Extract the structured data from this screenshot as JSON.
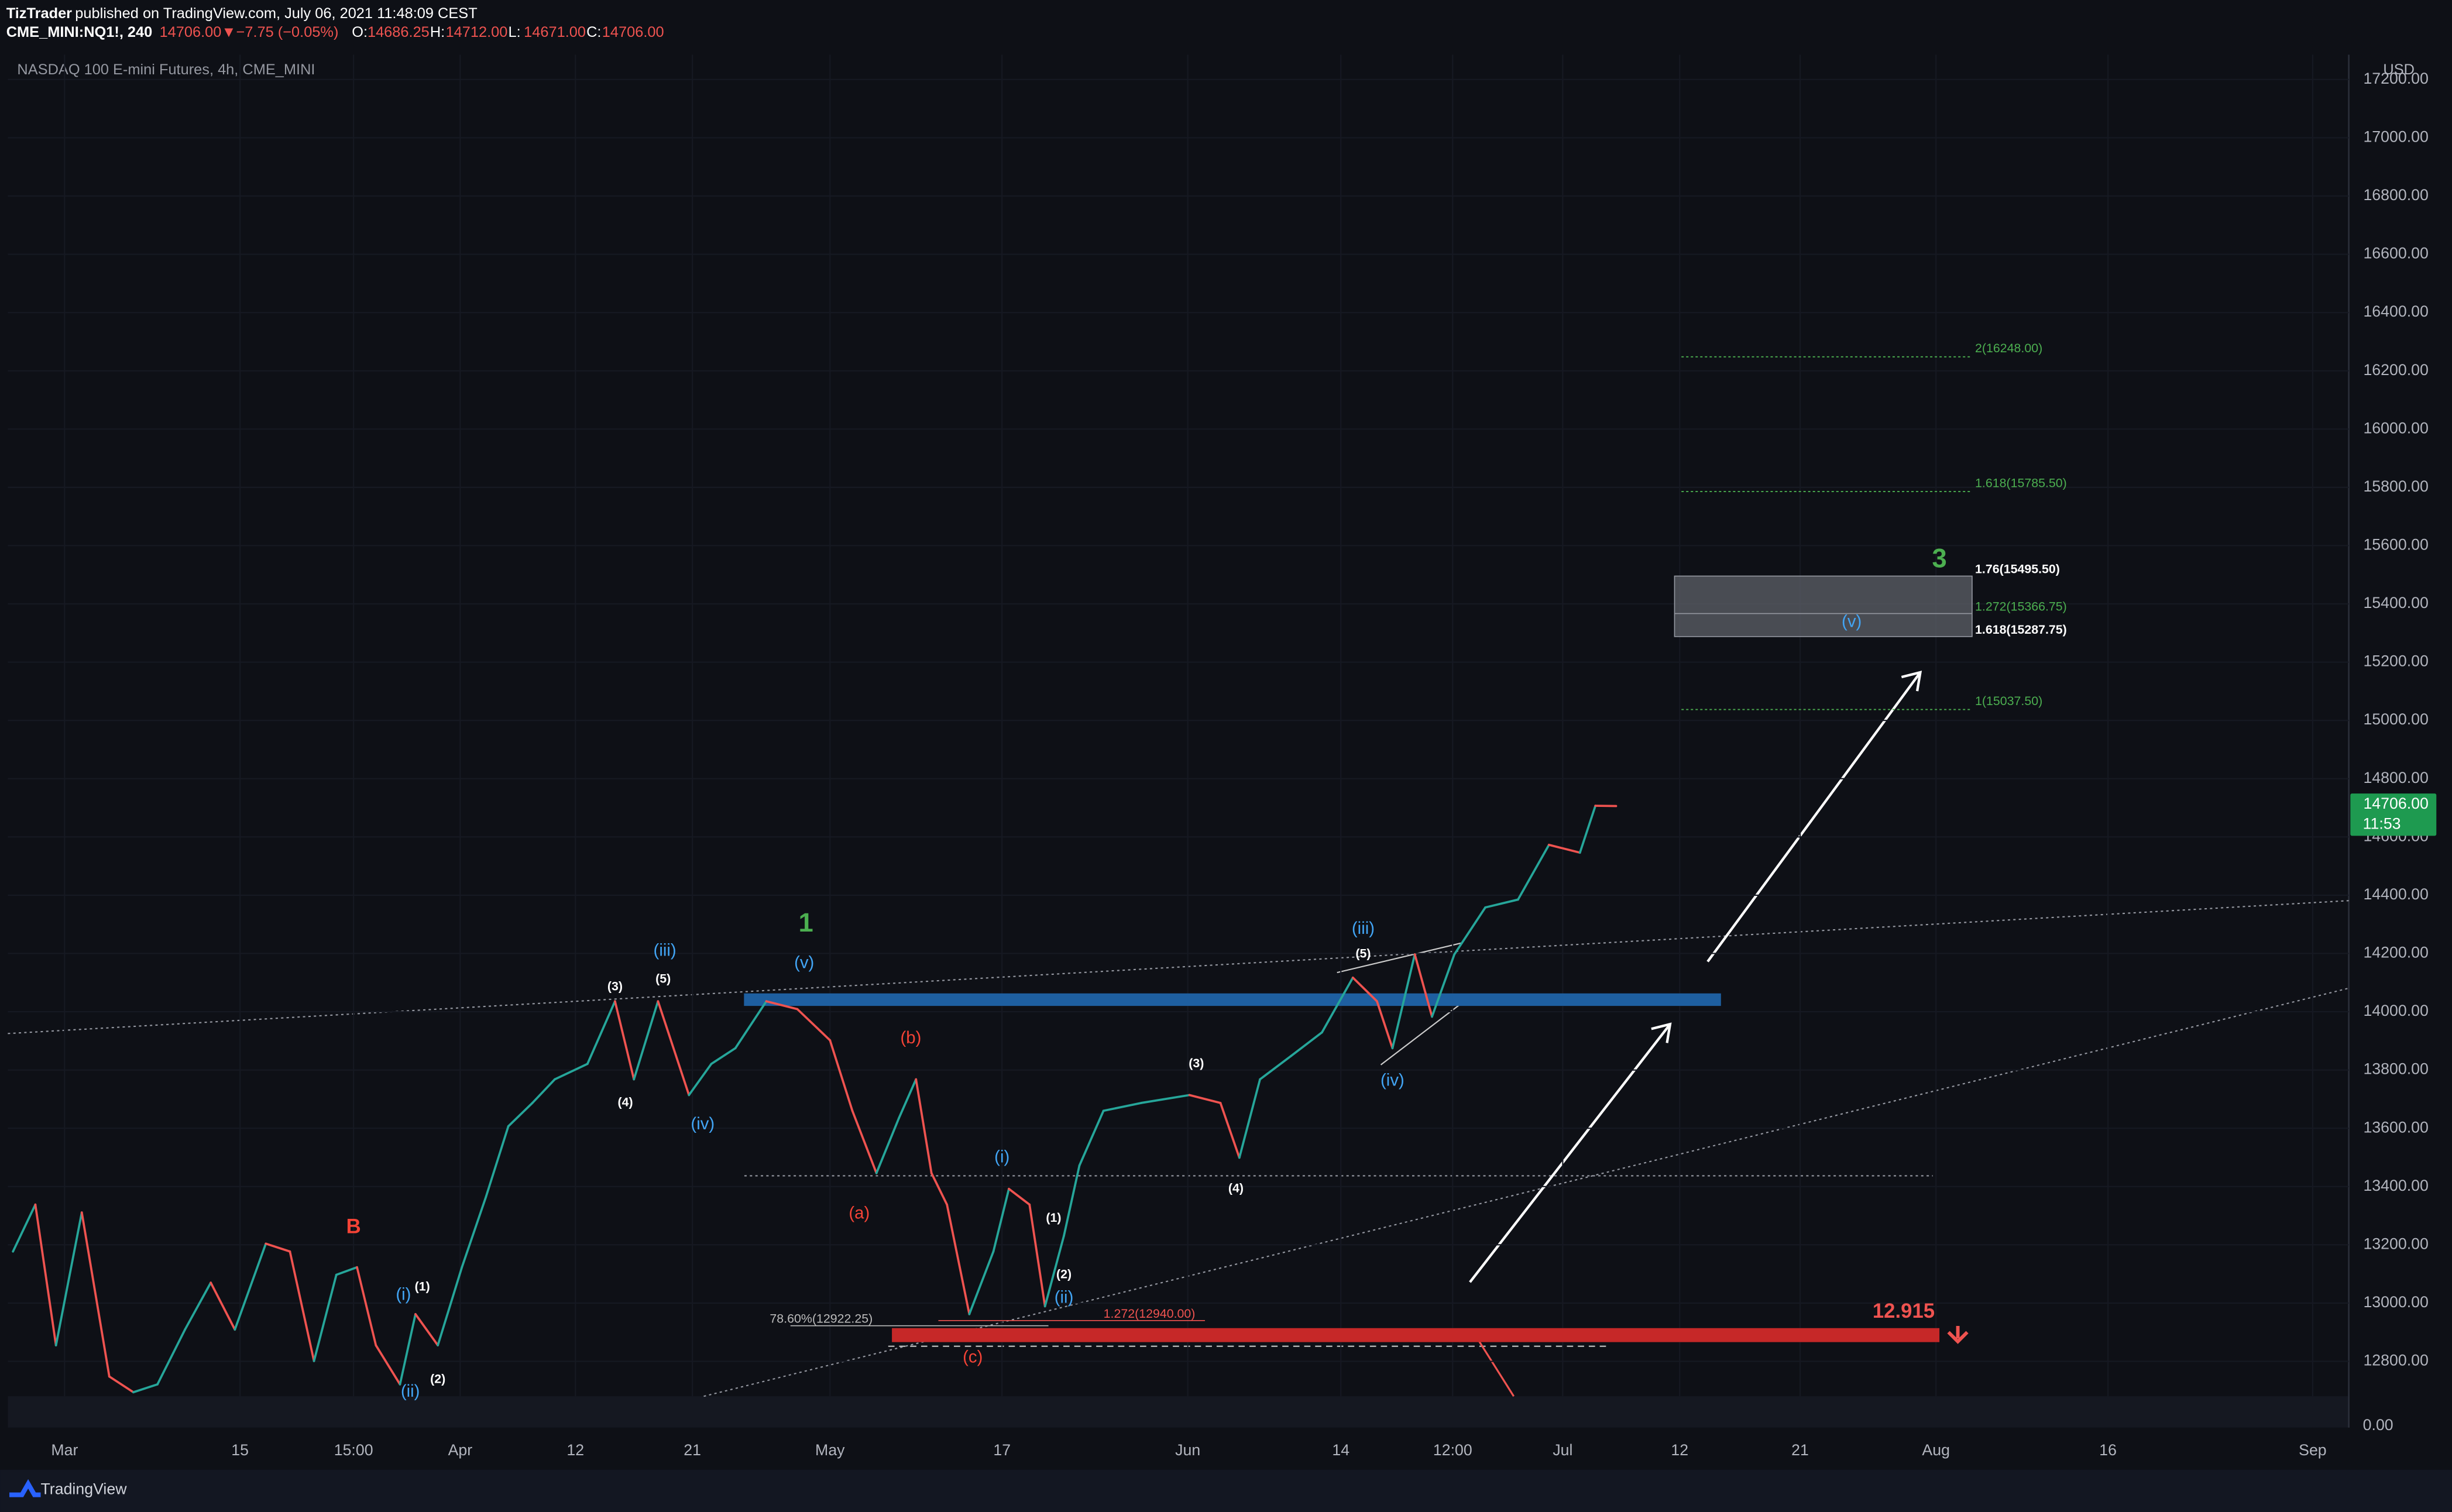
{
  "header": {
    "publisher": "TizTrader",
    "published": "published on TradingView.com, July 06, 2021 11:48:09 CEST",
    "symbol": "CME_MINI:NQ1!, 240",
    "change": "14706.00▼−7.75 (−0.05%)",
    "ohlc": [
      {
        "label": "O:",
        "value": "14686.25"
      },
      {
        "label": "H:",
        "value": "14712.00"
      },
      {
        "label": "L:",
        "value": "14671.00"
      },
      {
        "label": "C:",
        "value": "14706.00"
      }
    ]
  },
  "footer": {
    "brand": "TradingView"
  },
  "chart_data": {
    "type": "line",
    "title": "NASDAQ 100 E-mini Futures, 4h, CME_MINI",
    "currency": "USD",
    "color_up": "#26a69a",
    "color_down": "#ef5350",
    "x": [
      -3.0,
      -1.7,
      -0.5,
      1.0,
      2.6,
      4.0,
      5.4,
      7.0,
      8.5,
      9.9,
      11.7,
      13.1,
      14.5,
      15.8,
      17.0,
      18.1,
      19.5,
      20.4,
      21.7,
      23.1,
      24.5,
      25.8,
      27.2,
      28.5,
      30.4,
      32.0,
      33.1,
      34.5,
      36.3,
      37.6,
      39.0,
      40.8,
      42.6,
      44.5,
      45.8,
      47.2,
      48.5,
      49.5,
      50.4,
      51.3,
      52.6,
      54.0,
      54.9,
      56.1,
      57.0,
      58.1,
      59.0,
      60.4,
      62.6,
      65.4,
      67.2,
      68.3,
      69.5,
      71.3,
      73.1,
      74.9,
      76.3,
      77.2,
      78.5,
      79.5,
      80.8,
      82.6,
      84.5,
      86.3,
      88.1,
      89.0,
      90.2
    ],
    "values": [
      13177,
      13338,
      12855,
      13311,
      12748,
      12694,
      12721,
      12909,
      13070,
      12909,
      13204,
      13177,
      12801,
      13097,
      13123,
      12855,
      12721,
      12962,
      12855,
      13123,
      13365,
      13607,
      13687,
      13768,
      13821,
      14036,
      13768,
      14036,
      13714,
      13821,
      13875,
      14036,
      14009,
      13902,
      13660,
      13446,
      13634,
      13768,
      13446,
      13338,
      12962,
      13177,
      13392,
      13338,
      12989,
      13231,
      13472,
      13660,
      13687,
      13714,
      13687,
      13499,
      13768,
      13848,
      13929,
      14117,
      14036,
      13875,
      14197,
      13983,
      14197,
      14358,
      14385,
      14573,
      14546,
      14707,
      14706
    ],
    "xlim": [
      -3.3,
      132.8
    ],
    "xticks": [
      {
        "value": 0,
        "label": "Mar"
      },
      {
        "value": 10.2,
        "label": "15"
      },
      {
        "value": 16.8,
        "label": "15:00"
      },
      {
        "value": 23,
        "label": "Apr"
      },
      {
        "value": 29.7,
        "label": "12"
      },
      {
        "value": 36.5,
        "label": "21"
      },
      {
        "value": 44.5,
        "label": "May"
      },
      {
        "value": 54.5,
        "label": "17"
      },
      {
        "value": 65.3,
        "label": "Jun"
      },
      {
        "value": 74.2,
        "label": "14"
      },
      {
        "value": 80.7,
        "label": "12:00"
      },
      {
        "value": 87.1,
        "label": "Jul"
      },
      {
        "value": 93.9,
        "label": "12"
      },
      {
        "value": 100.9,
        "label": "21"
      },
      {
        "value": 108.8,
        "label": "Aug"
      },
      {
        "value": 118.8,
        "label": "16"
      },
      {
        "value": 130.7,
        "label": "Sep"
      }
    ],
    "ylim": [
      12680,
      17285
    ],
    "yticks": [
      {
        "value": 12800,
        "label": "12800.00"
      },
      {
        "value": 13000,
        "label": "13000.00"
      },
      {
        "value": 13200,
        "label": "13200.00"
      },
      {
        "value": 13400,
        "label": "13400.00"
      },
      {
        "value": 13600,
        "label": "13600.00"
      },
      {
        "value": 13800,
        "label": "13800.00"
      },
      {
        "value": 14000,
        "label": "14000.00"
      },
      {
        "value": 14200,
        "label": "14200.00"
      },
      {
        "value": 14400,
        "label": "14400.00"
      },
      {
        "value": 14600,
        "label": "14600.00"
      },
      {
        "value": 14800,
        "label": "14800.00"
      },
      {
        "value": 15000,
        "label": "15000.00"
      },
      {
        "value": 15200,
        "label": "15200.00"
      },
      {
        "value": 15400,
        "label": "15400.00"
      },
      {
        "value": 15600,
        "label": "15600.00"
      },
      {
        "value": 15800,
        "label": "15800.00"
      },
      {
        "value": 16000,
        "label": "16000.00"
      },
      {
        "value": 16200,
        "label": "16200.00"
      },
      {
        "value": 16400,
        "label": "16400.00"
      },
      {
        "value": 16600,
        "label": "16600.00"
      },
      {
        "value": 16800,
        "label": "16800.00"
      },
      {
        "value": 17000,
        "label": "17000.00"
      },
      {
        "value": 17200,
        "label": "17200.00"
      }
    ],
    "lower_pane_label": "0.00",
    "grid": true,
    "last_price": {
      "value": 14706,
      "label": "14706.00",
      "countdown": "11:53",
      "color": "#1e9a50"
    },
    "fib_levels": [
      {
        "label": "2(16248.00)",
        "value": 16248,
        "color": "#4caf50"
      },
      {
        "label": "1.618(15785.50)",
        "value": 15785.5,
        "color": "#4caf50"
      },
      {
        "label": "1(15037.50)",
        "value": 15037.5,
        "color": "#4caf50"
      }
    ],
    "fib_x": [
      94.0,
      110.8
    ],
    "target_box": {
      "x": [
        93.6,
        110.9
      ],
      "top": 15495.5,
      "bottom": 15287.75,
      "mid": 15366.75,
      "labels": [
        {
          "label": "1.76(15495.50)",
          "value": 15495.5,
          "color": "#ffffff"
        },
        {
          "label": "1.272(15366.75)",
          "value": 15366.75,
          "color": "#4caf50"
        },
        {
          "label": "1.618(15287.75)",
          "value": 15287.75,
          "color": "#ffffff"
        }
      ]
    },
    "blue_zone": {
      "x": [
        39.5,
        96.3
      ],
      "top": 14063,
      "bottom": 14020,
      "color": "#1e5fa0"
    },
    "red_zone": {
      "x": [
        48.1,
        109.0
      ],
      "top": 12914,
      "bottom": 12866,
      "color": "#c62828",
      "label": "12.915"
    },
    "small_fibs": [
      {
        "label": "78.60%(12922.25)",
        "value": 12922.25,
        "x": [
          42.2,
          57.2
        ],
        "label_x": 41.0,
        "color": "#bbbbbb"
      },
      {
        "label": "1.272(12940.00)",
        "value": 12940,
        "x": [
          50.8,
          66.3
        ],
        "label_x": 60.4,
        "color": "#ef5350"
      }
    ],
    "annotations": [
      {
        "text": "B",
        "x": 16.8,
        "y": 13258,
        "color": "#f44336",
        "size": 13
      },
      {
        "text": "(i)",
        "x": 19.7,
        "y": 13027,
        "color": "#42a5f5",
        "size": 11
      },
      {
        "text": "(1)",
        "x": 20.8,
        "y": 13054,
        "color": "#ffffff",
        "size": 8
      },
      {
        "text": "(ii)",
        "x": 20.1,
        "y": 12694,
        "color": "#42a5f5",
        "size": 11
      },
      {
        "text": "(2)",
        "x": 21.7,
        "y": 12737,
        "color": "#ffffff",
        "size": 8
      },
      {
        "text": "(3)",
        "x": 32.0,
        "y": 14085,
        "color": "#ffffff",
        "size": 8
      },
      {
        "text": "(5)",
        "x": 34.8,
        "y": 14111,
        "color": "#ffffff",
        "size": 8
      },
      {
        "text": "(iii)",
        "x": 34.9,
        "y": 14208,
        "color": "#42a5f5",
        "size": 11
      },
      {
        "text": "(4)",
        "x": 32.6,
        "y": 13687,
        "color": "#ffffff",
        "size": 8
      },
      {
        "text": "(iv)",
        "x": 37.1,
        "y": 13612,
        "color": "#42a5f5",
        "size": 11
      },
      {
        "text": "1",
        "x": 43.1,
        "y": 14299,
        "color": "#4caf50",
        "size": 17
      },
      {
        "text": "(v)",
        "x": 43.0,
        "y": 14165,
        "color": "#42a5f5",
        "size": 11
      },
      {
        "text": "(b)",
        "x": 49.2,
        "y": 13907,
        "color": "#f44336",
        "size": 11
      },
      {
        "text": "(a)",
        "x": 46.2,
        "y": 13306,
        "color": "#f44336",
        "size": 11
      },
      {
        "text": "(i)",
        "x": 54.5,
        "y": 13499,
        "color": "#42a5f5",
        "size": 11
      },
      {
        "text": "(1)",
        "x": 57.5,
        "y": 13290,
        "color": "#ffffff",
        "size": 8
      },
      {
        "text": "(2)",
        "x": 58.1,
        "y": 13097,
        "color": "#ffffff",
        "size": 8
      },
      {
        "text": "(ii)",
        "x": 58.1,
        "y": 13016,
        "color": "#42a5f5",
        "size": 11
      },
      {
        "text": "(c)",
        "x": 52.8,
        "y": 12812,
        "color": "#f44336",
        "size": 11
      },
      {
        "text": "(3)",
        "x": 65.8,
        "y": 13821,
        "color": "#ffffff",
        "size": 8
      },
      {
        "text": "(4)",
        "x": 68.1,
        "y": 13392,
        "color": "#ffffff",
        "size": 8
      },
      {
        "text": "(iii)",
        "x": 75.5,
        "y": 14283,
        "color": "#42a5f5",
        "size": 11
      },
      {
        "text": "(5)",
        "x": 75.5,
        "y": 14197,
        "color": "#ffffff",
        "size": 8
      },
      {
        "text": "(iv)",
        "x": 77.2,
        "y": 13762,
        "color": "#42a5f5",
        "size": 11
      },
      {
        "text": "3",
        "x": 109.0,
        "y": 15550,
        "color": "#4caf50",
        "size": 17
      },
      {
        "text": "(v)",
        "x": 103.9,
        "y": 15336,
        "color": "#42a5f5",
        "size": 11
      }
    ]
  }
}
